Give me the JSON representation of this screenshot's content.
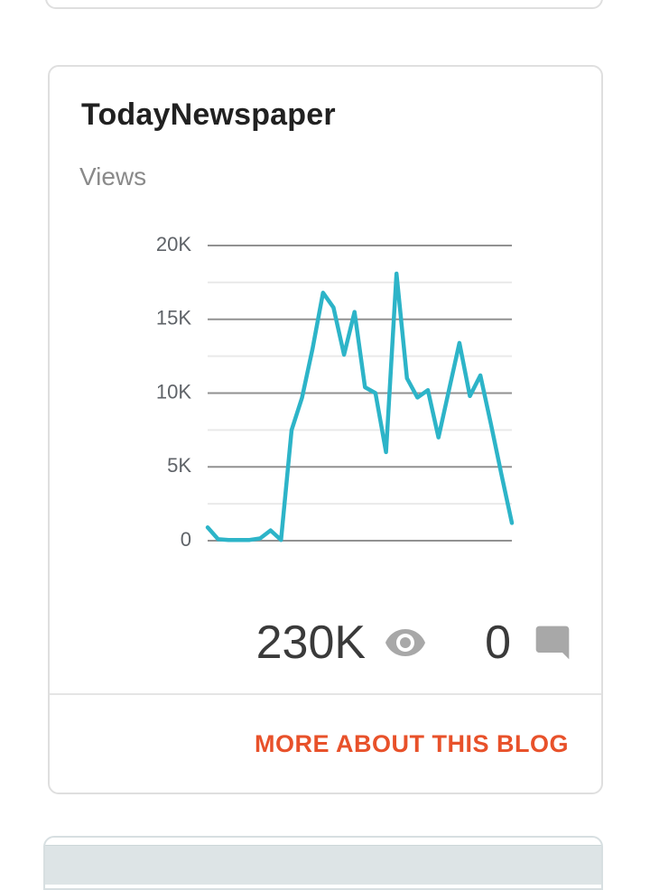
{
  "card": {
    "title": "TodayNewspaper",
    "section_label": "Views",
    "stats": {
      "views_count": "230K",
      "views_icon": "eye-icon",
      "comments_count": "0",
      "comments_icon": "comment-icon"
    },
    "footer_link": "MORE ABOUT THIS BLOG"
  },
  "colors": {
    "accent_orange": "#e8512a",
    "chart_line": "#2db4c8",
    "icon_gray": "#a8a8a8",
    "major_grid": "#919191",
    "minor_grid": "#e9e9e9",
    "axis_label": "#5f6368",
    "card_border": "#dfdfdf",
    "next_card_band": "#dde4e6"
  },
  "chart_data": {
    "type": "line",
    "title": "Views",
    "xlabel": "",
    "ylabel": "",
    "ylim": [
      0,
      20000
    ],
    "major_grid_step": 5000,
    "minor_grid_step": 2500,
    "yticks": [
      "0",
      "5K",
      "10K",
      "15K",
      "20K"
    ],
    "grid": true,
    "legend": false,
    "x_points": 30,
    "values": [
      900,
      100,
      50,
      50,
      50,
      150,
      700,
      50,
      7500,
      9700,
      13000,
      16800,
      15800,
      12600,
      15500,
      10400,
      10000,
      6000,
      18100,
      11000,
      9700,
      10200,
      7000,
      10200,
      13400,
      9800,
      11200,
      7900,
      4500,
      1200
    ],
    "line_color": "#2db4c8"
  }
}
